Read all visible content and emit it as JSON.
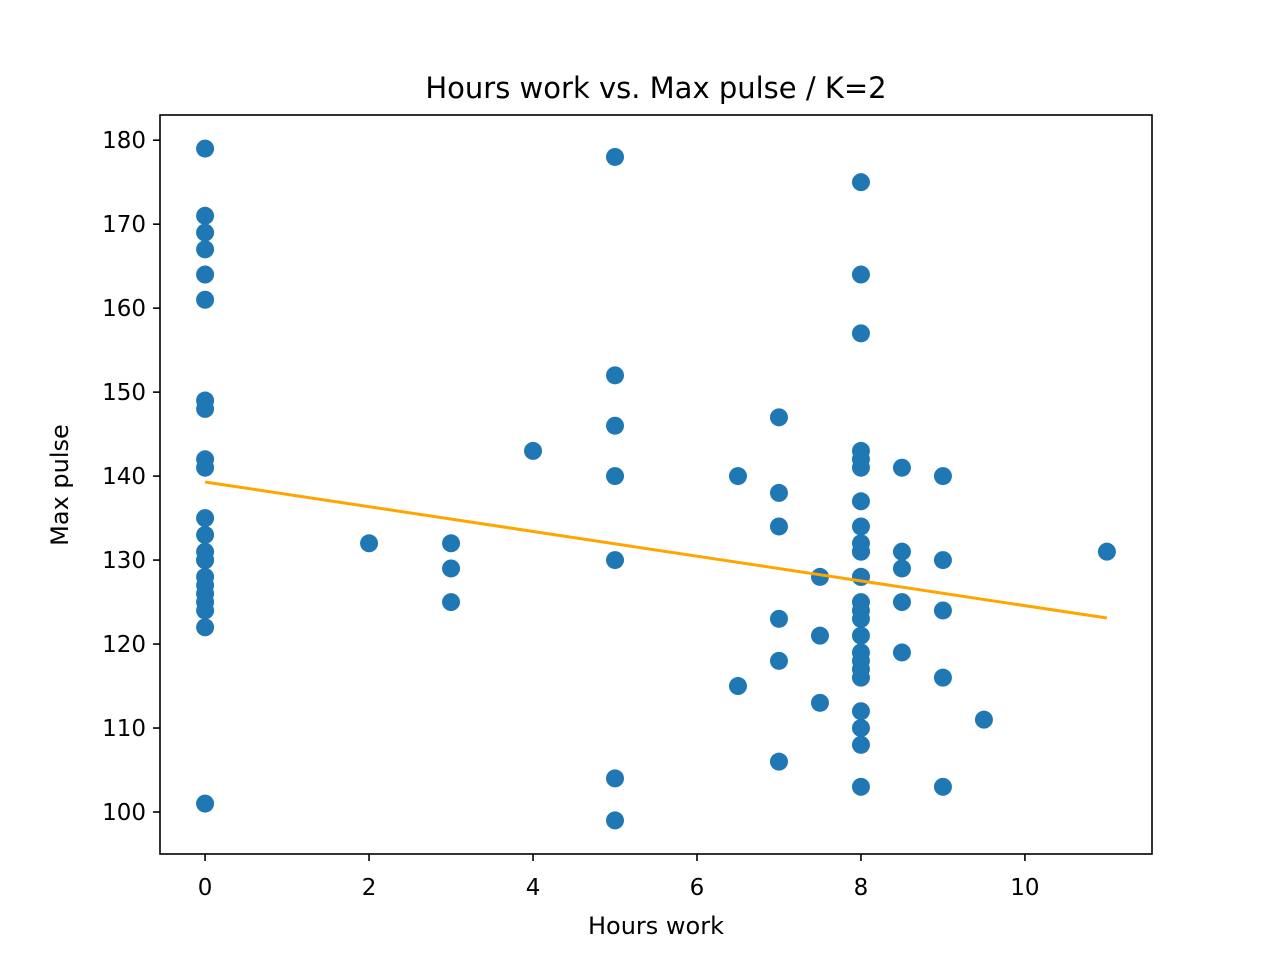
{
  "chart_data": {
    "type": "scatter",
    "title": "Hours work vs. Max pulse / K=2",
    "xlabel": "Hours work",
    "ylabel": "Max pulse",
    "xlim": [
      -0.55,
      11.55
    ],
    "ylim": [
      95,
      183
    ],
    "xticks": [
      0,
      2,
      4,
      6,
      8,
      10
    ],
    "yticks": [
      100,
      110,
      120,
      130,
      140,
      150,
      160,
      170,
      180
    ],
    "grid": false,
    "points": {
      "color": "#1f77b4",
      "x": [
        0,
        0,
        0,
        0,
        0,
        0,
        0,
        0,
        0,
        0,
        0,
        0,
        0,
        0,
        0,
        0,
        0,
        0,
        0,
        0,
        0,
        0,
        2,
        3,
        3,
        3,
        4,
        5,
        5,
        5,
        5,
        5,
        5,
        5,
        6.5,
        6.5,
        7,
        7,
        7,
        7,
        7,
        7,
        7.5,
        7.5,
        7.5,
        8,
        8,
        8,
        8,
        8,
        8,
        8,
        8,
        8,
        8,
        8,
        8,
        8,
        8,
        8,
        8,
        8,
        8,
        8,
        8,
        8,
        8,
        8,
        8,
        8,
        8.5,
        8.5,
        8.5,
        8.5,
        8.5,
        9,
        9,
        9,
        9,
        9,
        9.5,
        11
      ],
      "y": [
        179,
        171,
        169,
        167,
        164,
        161,
        149,
        148,
        142,
        141,
        135,
        133,
        131,
        130,
        128,
        127,
        126,
        125,
        124,
        122,
        101,
        130,
        132,
        132,
        129,
        125,
        143,
        178,
        152,
        146,
        140,
        130,
        104,
        99,
        140,
        115,
        147,
        138,
        134,
        123,
        118,
        106,
        128,
        121,
        113,
        175,
        164,
        157,
        143,
        142,
        141,
        137,
        134,
        132,
        131,
        128,
        125,
        124,
        123,
        121,
        119,
        118,
        117,
        116,
        112,
        110,
        108,
        103,
        128,
        131,
        141,
        131,
        129,
        125,
        119,
        140,
        130,
        124,
        116,
        103,
        111,
        131
      ]
    },
    "fit_line": {
      "color": "#ffa500",
      "x": [
        0,
        11
      ],
      "y": [
        139.3,
        123.1
      ]
    }
  }
}
